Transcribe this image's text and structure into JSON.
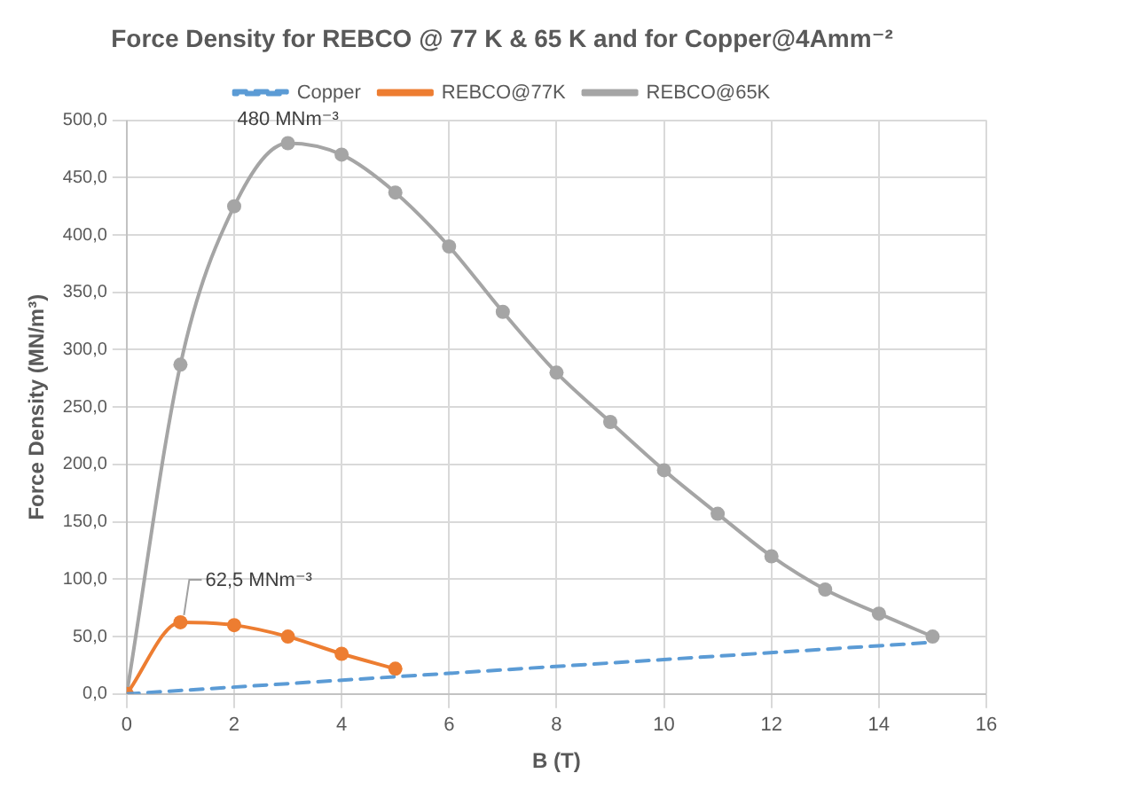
{
  "chart_data": {
    "type": "line",
    "title": "Force Density for REBCO @ 77 K & 65 K and for Copper@4Amm⁻²",
    "xlabel": "B (T)",
    "ylabel": "Force Density (MN/m³)",
    "series": [
      {
        "name": "Copper",
        "color": "#5b9bd5",
        "x": [
          0,
          15
        ],
        "values": [
          0,
          45
        ],
        "line_style": "dashed",
        "marker": "none"
      },
      {
        "name": "REBCO@77K",
        "color": "#ed7d31",
        "x": [
          0,
          1,
          2,
          3,
          4,
          5
        ],
        "values": [
          0,
          62.5,
          60,
          50,
          35,
          22
        ],
        "marker": "circle"
      },
      {
        "name": "REBCO@65K",
        "color": "#a5a5a5",
        "x": [
          0,
          1,
          2,
          3,
          4,
          5,
          6,
          7,
          8,
          9,
          10,
          11,
          12,
          13,
          14,
          15
        ],
        "values": [
          0,
          287,
          425,
          480,
          470,
          437,
          390,
          333,
          280,
          237,
          195,
          157,
          120,
          91,
          70,
          50
        ],
        "marker": "circle"
      }
    ],
    "xlim": [
      0,
      16
    ],
    "xticks": [
      0,
      2,
      4,
      6,
      8,
      10,
      12,
      14,
      16
    ],
    "ylim": [
      0,
      500
    ],
    "yticks": [
      {
        "value": 0,
        "label": "0,0"
      },
      {
        "value": 50,
        "label": "50,0"
      },
      {
        "value": 100,
        "label": "100,0"
      },
      {
        "value": 150,
        "label": "150,0"
      },
      {
        "value": 200,
        "label": "200,0"
      },
      {
        "value": 250,
        "label": "250,0"
      },
      {
        "value": 300,
        "label": "300,0"
      },
      {
        "value": 350,
        "label": "350,0"
      },
      {
        "value": 400,
        "label": "400,0"
      },
      {
        "value": 450,
        "label": "450,0"
      },
      {
        "value": 500,
        "label": "500,0"
      }
    ],
    "annotations": [
      {
        "text": "480 MNm⁻³",
        "x": 3,
        "y": 480
      },
      {
        "text": "62,5 MNm⁻³",
        "x": 1,
        "y": 62.5
      }
    ],
    "grid": true,
    "legend": "top"
  }
}
